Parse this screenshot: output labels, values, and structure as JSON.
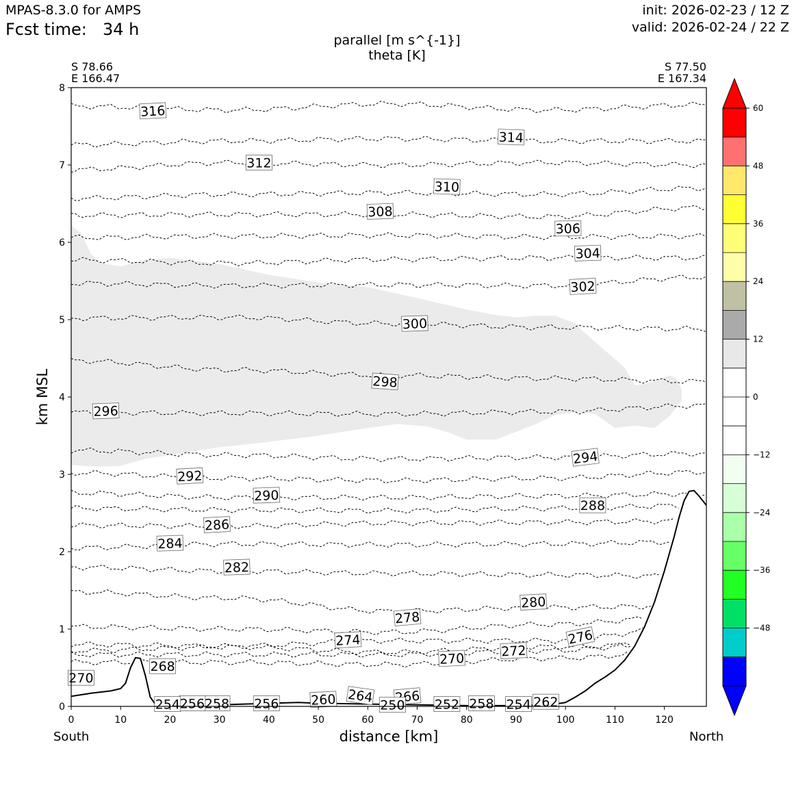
{
  "header": {
    "model": "MPAS-8.3.0 for AMPS",
    "fcst_label": "Fcst time:",
    "fcst_value": "34 h",
    "init": "init: 2026-02-23 / 12 Z",
    "valid": "valid: 2026-02-24 / 22 Z"
  },
  "endpoints": {
    "south_lat": "S 78.66",
    "south_lon": "E 166.47",
    "north_lat": "S 77.50",
    "north_lon": "E 167.34",
    "south_label": "South",
    "north_label": "North"
  },
  "chart_data": {
    "type": "cross-section",
    "title": "parallel [m s^{-1}]",
    "subtitle": "theta [K]",
    "xlabel": "distance [km]",
    "ylabel": "km MSL",
    "xlim": [
      0,
      128.5
    ],
    "ylim": [
      0,
      8
    ],
    "x_ticks": [
      "0",
      "10",
      "20",
      "30",
      "40",
      "50",
      "60",
      "70",
      "80",
      "90",
      "100",
      "110",
      "120"
    ],
    "y_ticks": [
      "0",
      "1",
      "2",
      "3",
      "4",
      "5",
      "6",
      "7",
      "8"
    ],
    "terrain": [
      [
        0,
        0.13
      ],
      [
        4,
        0.17
      ],
      [
        8,
        0.2
      ],
      [
        10,
        0.23
      ],
      [
        11,
        0.3
      ],
      [
        12,
        0.5
      ],
      [
        13,
        0.63
      ],
      [
        14,
        0.62
      ],
      [
        15,
        0.4
      ],
      [
        16,
        0.12
      ],
      [
        17,
        0.03
      ],
      [
        20,
        0.02
      ],
      [
        30,
        0.02
      ],
      [
        40,
        0.04
      ],
      [
        46,
        0.05
      ],
      [
        50,
        0.04
      ],
      [
        60,
        0.03
      ],
      [
        70,
        0.02
      ],
      [
        80,
        0.01
      ],
      [
        90,
        0.01
      ],
      [
        97,
        0.02
      ],
      [
        100,
        0.05
      ],
      [
        102,
        0.12
      ],
      [
        104,
        0.2
      ],
      [
        106,
        0.3
      ],
      [
        108,
        0.38
      ],
      [
        110,
        0.47
      ],
      [
        112,
        0.6
      ],
      [
        114,
        0.78
      ],
      [
        116,
        1.03
      ],
      [
        118,
        1.35
      ],
      [
        120,
        1.75
      ],
      [
        122,
        2.2
      ],
      [
        123,
        2.45
      ],
      [
        124,
        2.66
      ],
      [
        125,
        2.78
      ],
      [
        126,
        2.79
      ],
      [
        127,
        2.72
      ],
      [
        128.5,
        2.6
      ]
    ],
    "wind_region": {
      "value_range": "0 to 12",
      "top": [
        [
          0,
          6.22
        ],
        [
          2,
          6.12
        ],
        [
          4,
          5.85
        ],
        [
          6,
          5.73
        ],
        [
          10,
          5.69
        ],
        [
          14,
          5.76
        ],
        [
          20,
          5.8
        ],
        [
          30,
          5.72
        ],
        [
          40,
          5.58
        ],
        [
          50,
          5.48
        ],
        [
          60,
          5.42
        ],
        [
          70,
          5.28
        ],
        [
          80,
          5.13
        ],
        [
          86,
          5.06
        ],
        [
          90,
          5.03
        ],
        [
          94,
          5.05
        ],
        [
          98,
          5.05
        ],
        [
          102,
          4.95
        ],
        [
          104,
          4.82
        ],
        [
          108,
          4.6
        ],
        [
          112,
          4.38
        ],
        [
          114,
          4.15
        ],
        [
          116,
          4.17
        ],
        [
          119,
          4.23
        ],
        [
          121,
          4.28
        ],
        [
          122.5,
          4.24
        ],
        [
          123.5,
          4.1
        ],
        [
          123.5,
          3.95
        ]
      ],
      "bottom": [
        [
          0,
          3.12
        ],
        [
          5,
          3.1
        ],
        [
          10,
          3.11
        ],
        [
          15,
          3.2
        ],
        [
          20,
          3.25
        ],
        [
          30,
          3.35
        ],
        [
          40,
          3.42
        ],
        [
          50,
          3.5
        ],
        [
          60,
          3.6
        ],
        [
          66,
          3.65
        ],
        [
          72,
          3.62
        ],
        [
          76,
          3.55
        ],
        [
          80,
          3.45
        ],
        [
          86,
          3.45
        ],
        [
          90,
          3.55
        ],
        [
          94,
          3.65
        ],
        [
          98,
          3.77
        ],
        [
          102,
          3.8
        ],
        [
          106,
          3.78
        ],
        [
          110,
          3.6
        ],
        [
          114,
          3.63
        ],
        [
          118,
          3.6
        ],
        [
          121,
          3.75
        ],
        [
          123.5,
          3.95
        ]
      ]
    },
    "theta_contours": [
      {
        "v": 316,
        "y": 7.74,
        "a": [
          0.02,
          -0.03,
          0.05,
          -0.03,
          0.04
        ]
      },
      {
        "v": 314,
        "y": 7.29,
        "a": [
          -0.03,
          0.02,
          0.05,
          0.02,
          0.02
        ]
      },
      {
        "v": 312,
        "y": 6.98,
        "a": [
          -0.04,
          0.05,
          0.02,
          0.05,
          0.02
        ]
      },
      {
        "v": 310,
        "y": 6.6,
        "a": [
          -0.03,
          0.02,
          0.04,
          0.02,
          0.1
        ]
      },
      {
        "v": 308,
        "y": 6.33,
        "a": [
          0.02,
          0.03,
          0.03,
          0,
          0.12
        ]
      },
      {
        "v": 306,
        "y": 6.05,
        "a": [
          0.01,
          0.03,
          0.04,
          0.02,
          0.03
        ]
      },
      {
        "v": 304,
        "y": 5.75,
        "a": [
          0.02,
          -0.02,
          0.03,
          0.05,
          0.05
        ]
      },
      {
        "v": 302,
        "y": 5.43,
        "a": [
          0.04,
          0.01,
          0.02,
          0.01,
          0.12
        ]
      },
      {
        "v": 300,
        "y": 4.98,
        "a": [
          0.04,
          0.05,
          -0.03,
          -0.08,
          -0.1
        ]
      },
      {
        "v": 298,
        "y": 4.45,
        "a": [
          0.02,
          -0.1,
          -0.17,
          -0.21,
          -0.25
        ]
      },
      {
        "v": 296,
        "y": 3.84,
        "a": [
          -0.04,
          -0.05,
          -0.06,
          -0.03,
          0.05
        ]
      },
      {
        "v": 294,
        "y": 3.37,
        "a": [
          -0.06,
          -0.12,
          -0.17,
          -0.15,
          -0.1
        ]
      },
      {
        "v": 292,
        "y": 3.08,
        "a": [
          -0.06,
          -0.13,
          -0.16,
          -0.13,
          -0.05
        ]
      },
      {
        "v": 290,
        "y": 2.8,
        "a": [
          -0.04,
          -0.1,
          -0.1,
          -0.08,
          -0.05
        ]
      },
      {
        "v": 288,
        "y": 2.58,
        "a": [
          -0.02,
          -0.04,
          -0.05,
          -0.02,
          0.02
        ]
      },
      {
        "v": 286,
        "y": 2.4,
        "a": [
          -0.06,
          -0.07,
          -0.03,
          -0.02,
          0
        ]
      },
      {
        "v": 284,
        "y": 2.15,
        "a": [
          -0.1,
          -0.05,
          -0.06,
          -0.05,
          -0.02
        ]
      },
      {
        "v": 282,
        "y": 1.72,
        "a": [
          0.08,
          0.03,
          0,
          -0.02,
          -0.04
        ]
      },
      {
        "v": 280,
        "y": 1.38,
        "a": [
          0.1,
          0.02,
          -0.15,
          -0.1,
          -0.08
        ]
      },
      {
        "v": 278,
        "y": 1.08,
        "a": [
          -0.05,
          -0.08,
          -0.12,
          -0.02,
          0.1
        ]
      },
      {
        "v": 276,
        "y": 0.9,
        "a": [
          -0.1,
          -0.12,
          -0.05,
          -0.05,
          0.15
        ]
      },
      {
        "v": 274,
        "y": 0.82,
        "a": [
          -0.1,
          -0.05,
          -0.12,
          -0.05,
          0
        ]
      },
      {
        "v": 272,
        "y": 0.72,
        "a": [
          -0.05,
          -0.05,
          -0.05,
          0,
          0.15
        ]
      },
      {
        "v": 270,
        "y": 0.62,
        "a": [
          -0.05,
          -0.05,
          -0.08,
          0,
          0.1
        ]
      }
    ],
    "theta_labels": [
      {
        "text": "316",
        "x": 16.5,
        "y": 7.7,
        "rot": -3
      },
      {
        "text": "314",
        "x": 89,
        "y": 7.36,
        "rot": 2
      },
      {
        "text": "312",
        "x": 38,
        "y": 7.03,
        "rot": 0
      },
      {
        "text": "310",
        "x": 76,
        "y": 6.72,
        "rot": 2
      },
      {
        "text": "308",
        "x": 62.5,
        "y": 6.4,
        "rot": -2
      },
      {
        "text": "306",
        "x": 100.5,
        "y": 6.18,
        "rot": -1
      },
      {
        "text": "304",
        "x": 104.5,
        "y": 5.86,
        "rot": -2
      },
      {
        "text": "302",
        "x": 103.5,
        "y": 5.43,
        "rot": -3
      },
      {
        "text": "300",
        "x": 69.5,
        "y": 4.95,
        "rot": -2
      },
      {
        "text": "298",
        "x": 63.5,
        "y": 4.2,
        "rot": 4
      },
      {
        "text": "296",
        "x": 7,
        "y": 3.82,
        "rot": -2
      },
      {
        "text": "294",
        "x": 104,
        "y": 3.22,
        "rot": -7
      },
      {
        "text": "292",
        "x": 24,
        "y": 2.98,
        "rot": -3
      },
      {
        "text": "290",
        "x": 39.5,
        "y": 2.73,
        "rot": -2
      },
      {
        "text": "288",
        "x": 105.5,
        "y": 2.6,
        "rot": 0
      },
      {
        "text": "286",
        "x": 29.5,
        "y": 2.35,
        "rot": -3
      },
      {
        "text": "284",
        "x": 20,
        "y": 2.11,
        "rot": -2
      },
      {
        "text": "282",
        "x": 33.5,
        "y": 1.8,
        "rot": -2
      },
      {
        "text": "280",
        "x": 93.5,
        "y": 1.35,
        "rot": -3
      },
      {
        "text": "278",
        "x": 68,
        "y": 1.15,
        "rot": -5
      },
      {
        "text": "276",
        "x": 103,
        "y": 0.9,
        "rot": -12
      },
      {
        "text": "274",
        "x": 56,
        "y": 0.86,
        "rot": -3
      },
      {
        "text": "272",
        "x": 89.5,
        "y": 0.72,
        "rot": -3
      },
      {
        "text": "270",
        "x": 77,
        "y": 0.62,
        "rot": -3
      },
      {
        "text": "268",
        "x": 18.5,
        "y": 0.52,
        "rot": 0
      },
      {
        "text": "270",
        "x": 2,
        "y": 0.37,
        "rot": 0
      },
      {
        "text": "264",
        "x": 58.5,
        "y": 0.14,
        "rot": 8
      },
      {
        "text": "266",
        "x": 68,
        "y": 0.13,
        "rot": -5
      },
      {
        "text": "260",
        "x": 51,
        "y": 0.09,
        "rot": -3
      },
      {
        "text": "262",
        "x": 96,
        "y": 0.06,
        "rot": 0
      },
      {
        "text": "258",
        "x": 29.5,
        "y": 0.04,
        "rot": 0
      },
      {
        "text": "258",
        "x": 83,
        "y": 0.04,
        "rot": 0
      },
      {
        "text": "256",
        "x": 39.5,
        "y": 0.04,
        "rot": 0
      },
      {
        "text": "256",
        "x": 24.5,
        "y": 0.04,
        "rot": 0
      },
      {
        "text": "254",
        "x": 90.5,
        "y": 0.03,
        "rot": 0
      },
      {
        "text": "254",
        "x": 19.5,
        "y": 0.03,
        "rot": 0
      },
      {
        "text": "252",
        "x": 76,
        "y": 0.03,
        "rot": 0
      },
      {
        "text": "250",
        "x": 65,
        "y": 0.02,
        "rot": 0
      }
    ],
    "colorbar": {
      "bounds": [
        -60,
        -54,
        -48,
        -42,
        -36,
        -30,
        -24,
        -18,
        -12,
        -6,
        0,
        6,
        12,
        18,
        24,
        30,
        36,
        42,
        48,
        54,
        60
      ],
      "colors": [
        "#0000ff",
        "#00cccc",
        "#00e066",
        "#22ff22",
        "#66ff66",
        "#aaffaa",
        "#d6ffd6",
        "#f0fff0",
        "#ffffff",
        "#ffffff",
        "#ffffff",
        "#e8e8e8",
        "#aaaaaa",
        "#c0c0a4",
        "#ffffaa",
        "#ffff77",
        "#ffff33",
        "#ffe86a",
        "#ff7070",
        "#ff0000"
      ],
      "under_color": "#0000ff",
      "over_color": "#ff0000",
      "tick_labels": [
        "−48",
        "−36",
        "−24",
        "−12",
        "0",
        "12",
        "24",
        "36",
        "48",
        "60"
      ]
    }
  }
}
